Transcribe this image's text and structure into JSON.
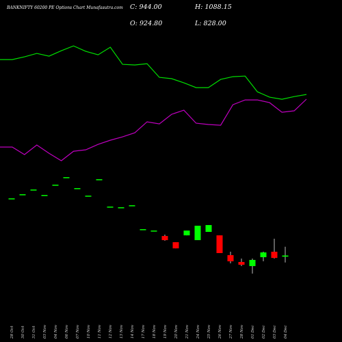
{
  "chart_data": {
    "type": "candlestick",
    "title": "BANKNIFTY 60200 PE Options Chart Munafasutra.com",
    "info": [
      "C: 944.00",
      "O: 924.80",
      "H: 1088.15",
      "L: 828.00"
    ],
    "categories": [
      "28 Oct",
      "30 Oct",
      "31 Oct",
      "03 Nov",
      "04 Nov",
      "06 Nov",
      "07 Nov",
      "10 Nov",
      "11 Nov",
      "12 Nov",
      "13 Nov",
      "14 Nov",
      "17 Nov",
      "18 Nov",
      "19 Nov",
      "20 Nov",
      "21 Nov",
      "24 Nov",
      "25 Nov",
      "26 Nov",
      "27 Nov",
      "28 Nov",
      "01 Dec",
      "02 Dec",
      "03 Dec",
      "04 Dec"
    ],
    "open": [
      1888,
      1956,
      2034,
      1944,
      2114,
      2238,
      2057,
      1933,
      2204,
      1752,
      1741,
      1774,
      1379,
      1356,
      1266,
      1164,
      1277,
      1198,
      1334,
      1277,
      950,
      837,
      769,
      916,
      1006,
      924.8
    ],
    "high": [
      1888,
      1956,
      2034,
      1944,
      2114,
      2238,
      2057,
      1933,
      2204,
      1752,
      1741,
      1774,
      1379,
      1356,
      1289,
      1164,
      1356,
      1436,
      1447,
      1277,
      1006,
      893,
      893,
      1006,
      1221,
      1088.15
    ],
    "low": [
      1888,
      1956,
      2034,
      1944,
      2114,
      2238,
      2057,
      1933,
      2204,
      1752,
      1741,
      1774,
      1379,
      1356,
      1187,
      1062,
      1277,
      1198,
      1334,
      984,
      814,
      769,
      645,
      848,
      893,
      828
    ],
    "close": [
      1888,
      1956,
      2034,
      1944,
      2114,
      2238,
      2057,
      1933,
      2204,
      1752,
      1741,
      1774,
      1379,
      1356,
      1198,
      1062,
      1356,
      1436,
      1447,
      984,
      848,
      791,
      871,
      995,
      904,
      944
    ],
    "up_color": "#00ff00",
    "down_color": "#ff0000",
    "lines": [
      {
        "color": "#00e000",
        "values": [
          4181,
          4181,
          4226,
          4283,
          4237,
          4327,
          4407,
          4317,
          4260,
          4385,
          4102,
          4091,
          4113,
          3887,
          3865,
          3797,
          3718,
          3718,
          3853,
          3898,
          3909,
          3649,
          3559,
          3525,
          3570,
          3604
        ]
      },
      {
        "color": "#c000c0",
        "values": [
          2735,
          2735,
          2611,
          2769,
          2633,
          2509,
          2667,
          2690,
          2780,
          2848,
          2904,
          2972,
          3153,
          3119,
          3277,
          3345,
          3130,
          3108,
          3096,
          3435,
          3514,
          3514,
          3469,
          3311,
          3334,
          3526
        ]
      }
    ],
    "ylim": [
      193,
      5165
    ]
  }
}
